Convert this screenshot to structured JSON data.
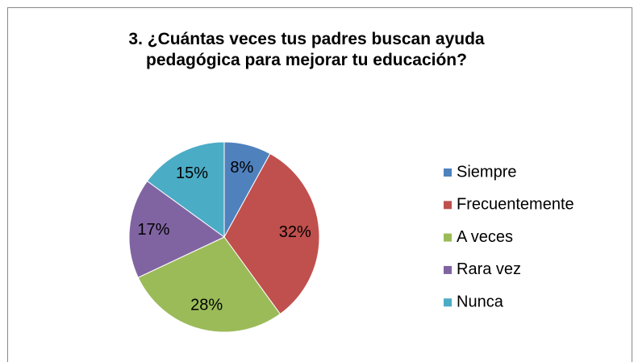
{
  "chart_data": {
    "type": "pie",
    "title": "3.  ¿Cuántas veces tus padres buscan ayuda pedagógica para mejorar tu educación?",
    "categories": [
      "Siempre",
      "Frecuentemente",
      "A veces",
      "Rara vez",
      "Nunca"
    ],
    "values": [
      8,
      32,
      28,
      17,
      15
    ],
    "value_labels": [
      "8%",
      "32%",
      "28%",
      "17%",
      "15%"
    ],
    "colors": [
      "#4f81bd",
      "#c0504d",
      "#9bbb59",
      "#8064a2",
      "#4bacc6"
    ],
    "legend": "right"
  }
}
